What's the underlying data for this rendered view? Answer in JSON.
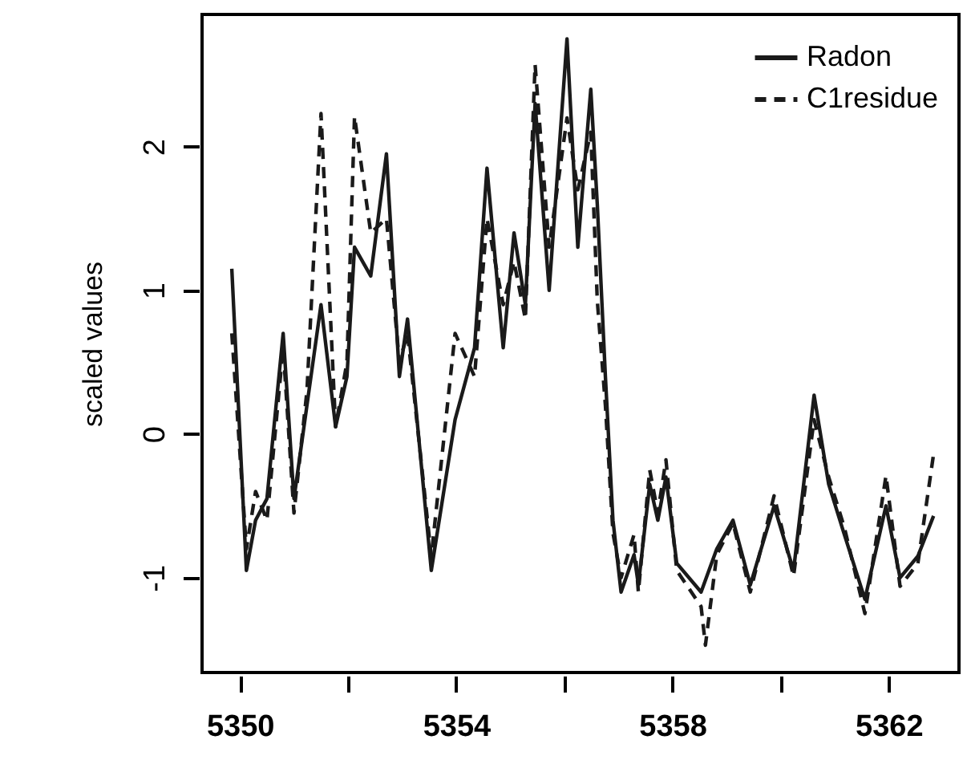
{
  "chart_data": {
    "type": "line",
    "ylabel": "scaled values",
    "xlim": [
      5349.3,
      5363.3
    ],
    "ylim": [
      -1.66,
      2.92
    ],
    "xticks": [
      5350,
      {
        "value": 5352,
        "label": null
      },
      5354,
      {
        "value": 5356,
        "label": null
      },
      5358,
      {
        "value": 5360,
        "label": null
      },
      5362
    ],
    "yticks": [
      -1,
      0,
      1,
      2
    ],
    "grid": false,
    "legend": "top right",
    "series": [
      {
        "name": "Radon",
        "color": "#1a1a1a",
        "line_style": "solid",
        "x": [
          5349.85,
          5350.12,
          5350.29,
          5350.5,
          5350.8,
          5351.0,
          5351.24,
          5351.5,
          5351.77,
          5351.98,
          5352.12,
          5352.42,
          5352.71,
          5352.95,
          5353.1,
          5353.54,
          5353.98,
          5354.34,
          5354.57,
          5354.87,
          5355.07,
          5355.28,
          5355.46,
          5355.72,
          5356.05,
          5356.25,
          5356.49,
          5356.61,
          5356.76,
          5356.9,
          5357.05,
          5357.29,
          5357.37,
          5357.58,
          5357.73,
          5357.88,
          5358.08,
          5358.53,
          5358.82,
          5359.12,
          5359.44,
          5359.88,
          5360.24,
          5360.62,
          5360.89,
          5361.18,
          5361.56,
          5361.95,
          5362.21,
          5362.54,
          5362.83
        ],
        "values": [
          1.15,
          -0.95,
          -0.6,
          -0.45,
          0.7,
          -0.45,
          0.2,
          0.9,
          0.05,
          0.4,
          1.3,
          1.1,
          1.95,
          0.4,
          0.8,
          -0.95,
          0.1,
          0.6,
          1.85,
          0.6,
          1.4,
          0.9,
          2.3,
          1.0,
          2.75,
          1.3,
          2.4,
          1.6,
          0.4,
          -0.6,
          -1.1,
          -0.84,
          -1.05,
          -0.35,
          -0.6,
          -0.3,
          -0.9,
          -1.1,
          -0.8,
          -0.6,
          -1.05,
          -0.5,
          -0.95,
          0.27,
          -0.35,
          -0.7,
          -1.15,
          -0.5,
          -1.0,
          -0.85,
          -0.57
        ]
      },
      {
        "name": "C1residue",
        "color": "#1a1a1a",
        "line_style": "dashed",
        "x": [
          5349.85,
          5350.12,
          5350.29,
          5350.5,
          5350.8,
          5351.0,
          5351.24,
          5351.5,
          5351.77,
          5351.98,
          5352.12,
          5352.42,
          5352.71,
          5352.95,
          5353.1,
          5353.54,
          5353.98,
          5354.34,
          5354.57,
          5354.87,
          5355.07,
          5355.28,
          5355.46,
          5355.72,
          5356.05,
          5356.25,
          5356.49,
          5356.61,
          5356.76,
          5356.9,
          5357.05,
          5357.29,
          5357.37,
          5357.58,
          5357.73,
          5357.88,
          5358.08,
          5358.53,
          5358.61,
          5358.82,
          5359.12,
          5359.44,
          5359.88,
          5360.24,
          5360.62,
          5360.89,
          5361.18,
          5361.56,
          5361.95,
          5362.21,
          5362.54,
          5362.83
        ],
        "values": [
          0.7,
          -0.8,
          -0.4,
          -0.6,
          0.6,
          -0.55,
          0.3,
          2.23,
          0.05,
          0.5,
          2.21,
          1.4,
          1.5,
          0.5,
          0.7,
          -0.85,
          0.7,
          0.4,
          1.5,
          0.9,
          1.2,
          0.8,
          2.57,
          1.3,
          2.2,
          1.7,
          2.1,
          0.93,
          0.2,
          -0.69,
          -1.0,
          -0.7,
          -1.1,
          -0.25,
          -0.55,
          -0.18,
          -0.95,
          -1.2,
          -1.47,
          -0.84,
          -0.62,
          -1.1,
          -0.43,
          -0.99,
          0.1,
          -0.3,
          -0.65,
          -1.25,
          -0.29,
          -1.06,
          -0.9,
          -0.14
        ]
      }
    ]
  }
}
